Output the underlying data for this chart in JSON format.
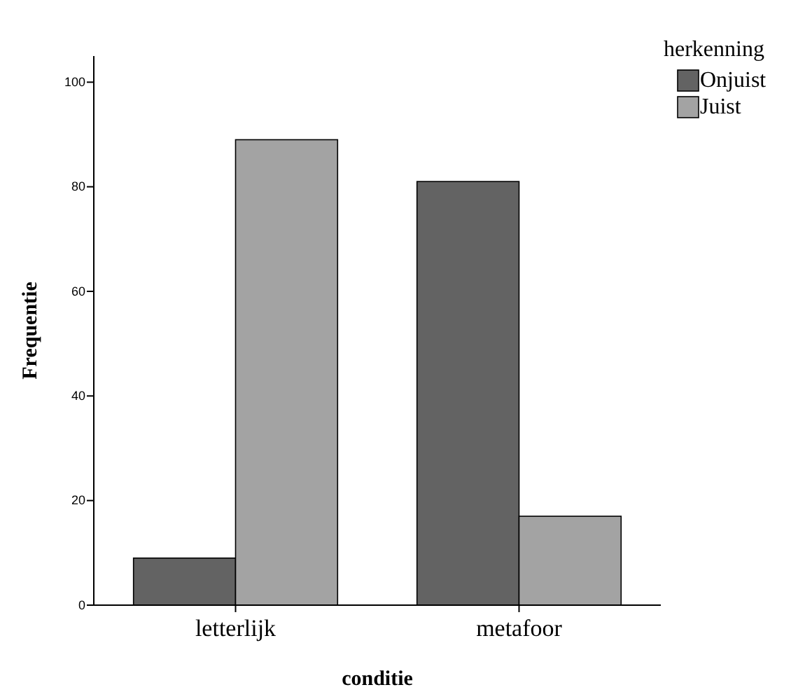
{
  "chart_data": {
    "type": "bar",
    "xlabel": "conditie",
    "ylabel": "Frequentie",
    "legend_title": "herkenning",
    "categories": [
      "letterlijk",
      "metafoor"
    ],
    "series": [
      {
        "name": "Onjuist",
        "color": "#636363",
        "values": [
          9,
          81
        ]
      },
      {
        "name": "Juist",
        "color": "#a3a3a3",
        "values": [
          89,
          17
        ]
      }
    ],
    "ylim": [
      0,
      105
    ],
    "yticks": [
      0,
      20,
      40,
      60,
      80,
      100
    ],
    "grid": false,
    "legend": "top right"
  }
}
